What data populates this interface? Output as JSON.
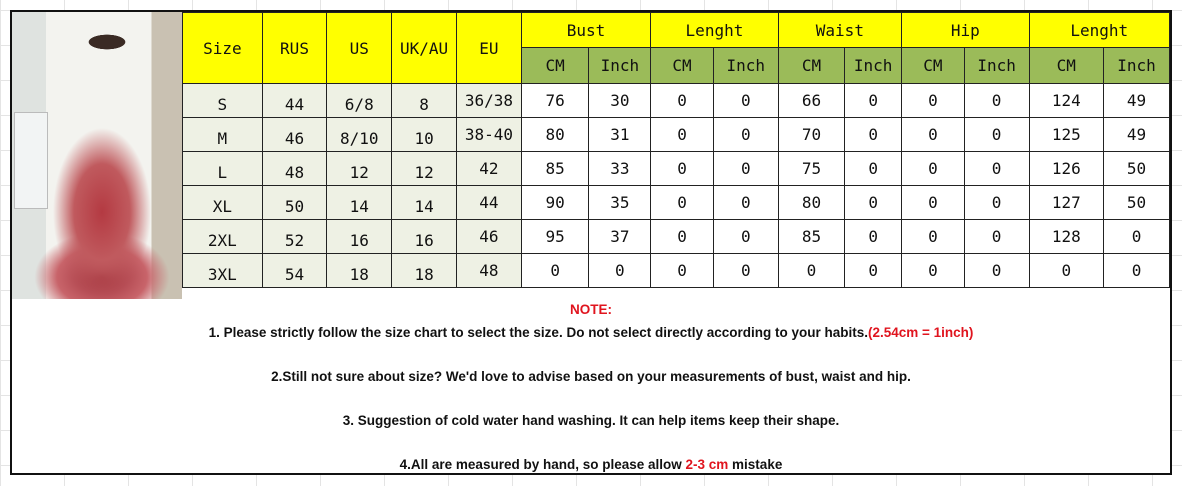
{
  "header": {
    "size": "Size",
    "rus": "RUS",
    "us": "US",
    "ukau": "UK/AU",
    "eu": "EU",
    "groups": [
      "Bust",
      "Lenght",
      "Waist",
      "Hip",
      "Lenght"
    ],
    "cm": "CM",
    "inch": "Inch"
  },
  "rows": [
    {
      "size": "S",
      "rus": "44",
      "us": "6/8",
      "ukau": "8",
      "eu": "36/38",
      "vals": [
        "76",
        "30",
        "0",
        "0",
        "66",
        "0",
        "0",
        "0",
        "124",
        "49"
      ]
    },
    {
      "size": "M",
      "rus": "46",
      "us": "8/10",
      "ukau": "10",
      "eu": "38-40",
      "vals": [
        "80",
        "31",
        "0",
        "0",
        "70",
        "0",
        "0",
        "0",
        "125",
        "49"
      ]
    },
    {
      "size": "L",
      "rus": "48",
      "us": "12",
      "ukau": "12",
      "eu": "42",
      "vals": [
        "85",
        "33",
        "0",
        "0",
        "75",
        "0",
        "0",
        "0",
        "126",
        "50"
      ]
    },
    {
      "size": "XL",
      "rus": "50",
      "us": "14",
      "ukau": "14",
      "eu": "44",
      "vals": [
        "90",
        "35",
        "0",
        "0",
        "80",
        "0",
        "0",
        "0",
        "127",
        "50"
      ]
    },
    {
      "size": "2XL",
      "rus": "52",
      "us": "16",
      "ukau": "16",
      "eu": "46",
      "vals": [
        "95",
        "37",
        "0",
        "0",
        "85",
        "0",
        "0",
        "0",
        "128",
        "0"
      ]
    },
    {
      "size": "3XL",
      "rus": "54",
      "us": "18",
      "ukau": "18",
      "eu": "48",
      "vals": [
        "0",
        "0",
        "0",
        "0",
        "0",
        "0",
        "0",
        "0",
        "0",
        "0"
      ]
    }
  ],
  "notes": {
    "title": "NOTE:",
    "n1": "1. Please strictly follow the size chart to select the size. Do not select directly according to your habits.",
    "n1_red": "(2.54cm = 1inch)",
    "n2": "2.Still not sure about size? We'd love to advise based on your measurements of bust, waist and hip.",
    "n3": "3. Suggestion of cold water hand washing. It can help items keep their shape.",
    "n4_a": "4.All are measured by hand, so please allow ",
    "n4_red": "2-3 cm",
    "n4_b": " mistake"
  },
  "colors": {
    "header_yellow": "#ffff00",
    "subheader_green": "#9bbb59",
    "note_red": "#e0141e"
  }
}
